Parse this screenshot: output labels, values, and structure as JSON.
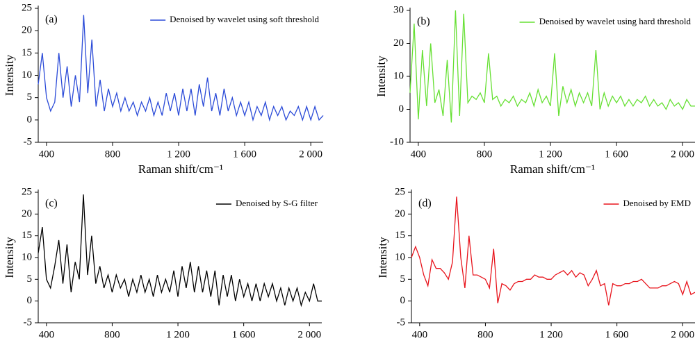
{
  "chart_data": [
    {
      "type": "line",
      "annotation": "(a)",
      "ylabel": "Intensity",
      "xlabel": "Raman shift/cm⁻¹",
      "xlim": [
        350,
        2075
      ],
      "ylim": [
        -5,
        25
      ],
      "xticks": [
        400,
        800,
        {
          "value": 1200,
          "label": "1 200"
        },
        {
          "value": 1600,
          "label": "1 600"
        },
        {
          "value": 2000,
          "label": "2 000"
        }
      ],
      "yticks": [
        -5,
        0,
        5,
        10,
        15,
        20,
        25
      ],
      "legend": "upper right",
      "x": [
        350,
        375,
        400,
        425,
        450,
        475,
        500,
        525,
        550,
        575,
        600,
        625,
        650,
        675,
        700,
        725,
        750,
        775,
        800,
        825,
        850,
        875,
        900,
        925,
        950,
        975,
        1000,
        1025,
        1050,
        1075,
        1100,
        1125,
        1150,
        1175,
        1200,
        1225,
        1250,
        1275,
        1300,
        1325,
        1350,
        1375,
        1400,
        1425,
        1450,
        1475,
        1500,
        1525,
        1550,
        1575,
        1600,
        1625,
        1650,
        1675,
        1700,
        1725,
        1750,
        1775,
        1800,
        1825,
        1850,
        1875,
        1900,
        1925,
        1950,
        1975,
        2000,
        2025,
        2050,
        2075
      ],
      "series": [
        {
          "name": "Denoised by wavelet using soft threshold",
          "color": "#2b4bd8",
          "values": [
            8,
            15,
            5,
            2,
            4,
            15,
            5,
            12,
            3,
            10,
            4,
            23.5,
            6,
            18,
            3,
            9,
            2,
            7,
            3,
            6,
            2,
            5,
            2,
            4,
            1,
            4,
            2,
            5,
            1,
            4,
            1,
            6,
            2,
            6,
            1,
            7,
            2,
            7,
            1,
            8,
            3,
            9.5,
            2,
            6,
            1,
            7,
            2,
            5,
            1,
            4,
            1,
            4,
            0,
            3,
            1,
            4,
            0,
            3,
            1,
            3,
            0,
            2,
            1,
            3,
            0,
            3,
            0,
            3,
            0,
            1
          ]
        }
      ]
    },
    {
      "type": "line",
      "annotation": "(b)",
      "ylabel": "Intensity",
      "xlabel": "Raman shift/cm⁻¹",
      "xlim": [
        350,
        2075
      ],
      "ylim": [
        -10,
        30
      ],
      "xticks": [
        400,
        800,
        {
          "value": 1200,
          "label": "1 200"
        },
        {
          "value": 1600,
          "label": "1 600"
        },
        {
          "value": 2000,
          "label": "2 000"
        }
      ],
      "yticks": [
        -10,
        0,
        10,
        20,
        30
      ],
      "legend": "upper right",
      "x": [
        350,
        375,
        400,
        425,
        450,
        475,
        500,
        525,
        550,
        575,
        600,
        625,
        650,
        675,
        700,
        725,
        750,
        775,
        800,
        825,
        850,
        875,
        900,
        925,
        950,
        975,
        1000,
        1025,
        1050,
        1075,
        1100,
        1125,
        1150,
        1175,
        1200,
        1225,
        1250,
        1275,
        1300,
        1325,
        1350,
        1375,
        1400,
        1425,
        1450,
        1475,
        1500,
        1525,
        1550,
        1575,
        1600,
        1625,
        1650,
        1675,
        1700,
        1725,
        1750,
        1775,
        1800,
        1825,
        1850,
        1875,
        1900,
        1925,
        1950,
        1975,
        2000,
        2025,
        2050,
        2075
      ],
      "series": [
        {
          "name": "Denoised by wavelet using hard threshold",
          "color": "#66e033",
          "values": [
            5,
            26,
            -3,
            18,
            1,
            20,
            2,
            6,
            -2,
            15,
            -4,
            30,
            -2,
            29,
            2,
            4,
            3,
            5,
            2,
            17,
            3,
            4,
            1,
            3,
            2,
            4,
            1,
            3,
            2,
            5,
            1,
            6,
            2,
            4,
            1,
            17,
            -2,
            7,
            2,
            6,
            1,
            5,
            2,
            5,
            1,
            18,
            0,
            5,
            1,
            4,
            2,
            4,
            1,
            3,
            1,
            3,
            2,
            4,
            1,
            3,
            1,
            2,
            0,
            3,
            1,
            2,
            0,
            3,
            1,
            1
          ]
        }
      ]
    },
    {
      "type": "line",
      "annotation": "(c)",
      "ylabel": "Intensity",
      "xlim": [
        350,
        2075
      ],
      "ylim": [
        -5,
        25
      ],
      "xticks": [
        400,
        800,
        {
          "value": 1200,
          "label": "1 200"
        },
        {
          "value": 1600,
          "label": "1 600"
        },
        {
          "value": 2000,
          "label": "2 000"
        }
      ],
      "yticks": [
        -5,
        0,
        5,
        10,
        15,
        20,
        25
      ],
      "legend": "upper right",
      "x": [
        350,
        375,
        400,
        425,
        450,
        475,
        500,
        525,
        550,
        575,
        600,
        625,
        650,
        675,
        700,
        725,
        750,
        775,
        800,
        825,
        850,
        875,
        900,
        925,
        950,
        975,
        1000,
        1025,
        1050,
        1075,
        1100,
        1125,
        1150,
        1175,
        1200,
        1225,
        1250,
        1275,
        1300,
        1325,
        1350,
        1375,
        1400,
        1425,
        1450,
        1475,
        1500,
        1525,
        1550,
        1575,
        1600,
        1625,
        1650,
        1675,
        1700,
        1725,
        1750,
        1775,
        1800,
        1825,
        1850,
        1875,
        1900,
        1925,
        1950,
        1975,
        2000,
        2025,
        2050,
        2075
      ],
      "series": [
        {
          "name": "Denoised by S-G filter",
          "color": "#000000",
          "values": [
            11,
            17,
            5,
            3,
            8,
            14,
            4,
            13,
            2,
            9,
            5,
            24.5,
            6,
            15,
            4,
            8,
            3,
            6,
            2,
            6,
            3,
            5,
            1,
            5,
            2,
            6,
            2,
            5,
            1,
            6,
            2,
            5,
            2,
            7,
            1,
            8,
            3,
            9,
            2,
            8,
            2,
            7,
            1,
            7,
            -1,
            6,
            1,
            6,
            0,
            5,
            1,
            4,
            0,
            4,
            0,
            4,
            1,
            4,
            0,
            3,
            -1,
            3,
            0,
            3,
            -1,
            2,
            0,
            4,
            0,
            0
          ]
        }
      ]
    },
    {
      "type": "line",
      "annotation": "(d)",
      "ylabel": "Intensity",
      "xlim": [
        350,
        2075
      ],
      "ylim": [
        -5,
        25
      ],
      "xticks": [
        400,
        800,
        {
          "value": 1200,
          "label": "1 200"
        },
        {
          "value": 1600,
          "label": "1 600"
        },
        {
          "value": 2000,
          "label": "2 000"
        }
      ],
      "yticks": [
        -5,
        0,
        5,
        10,
        15,
        20,
        25
      ],
      "legend": "upper right",
      "x": [
        350,
        375,
        400,
        425,
        450,
        475,
        500,
        525,
        550,
        575,
        600,
        625,
        650,
        675,
        700,
        725,
        750,
        775,
        800,
        825,
        850,
        875,
        900,
        925,
        950,
        975,
        1000,
        1025,
        1050,
        1075,
        1100,
        1125,
        1150,
        1175,
        1200,
        1225,
        1250,
        1275,
        1300,
        1325,
        1350,
        1375,
        1400,
        1425,
        1450,
        1475,
        1500,
        1525,
        1550,
        1575,
        1600,
        1625,
        1650,
        1675,
        1700,
        1725,
        1750,
        1775,
        1800,
        1825,
        1850,
        1875,
        1900,
        1925,
        1950,
        1975,
        2000,
        2025,
        2050,
        2075
      ],
      "series": [
        {
          "name": "Denoised by EMD",
          "color": "#e8141c",
          "values": [
            10,
            12.5,
            10,
            6,
            3.5,
            9.5,
            7.5,
            7.5,
            6.5,
            5,
            9,
            24,
            10,
            3,
            15,
            6,
            6,
            5.5,
            5,
            3,
            12,
            -0.5,
            4,
            3.5,
            2.5,
            4,
            4.5,
            4.5,
            5,
            5,
            6,
            5.5,
            5.5,
            5,
            5,
            6,
            6.5,
            7,
            6,
            7,
            5.5,
            6.5,
            6,
            3.5,
            5,
            7,
            3.5,
            4,
            -1,
            4,
            3.5,
            3.5,
            4,
            4,
            4.5,
            4.5,
            5,
            4,
            3,
            3,
            3,
            3.5,
            3.5,
            4,
            4.5,
            4,
            1.5,
            4.5,
            1.5,
            2
          ]
        }
      ]
    }
  ]
}
